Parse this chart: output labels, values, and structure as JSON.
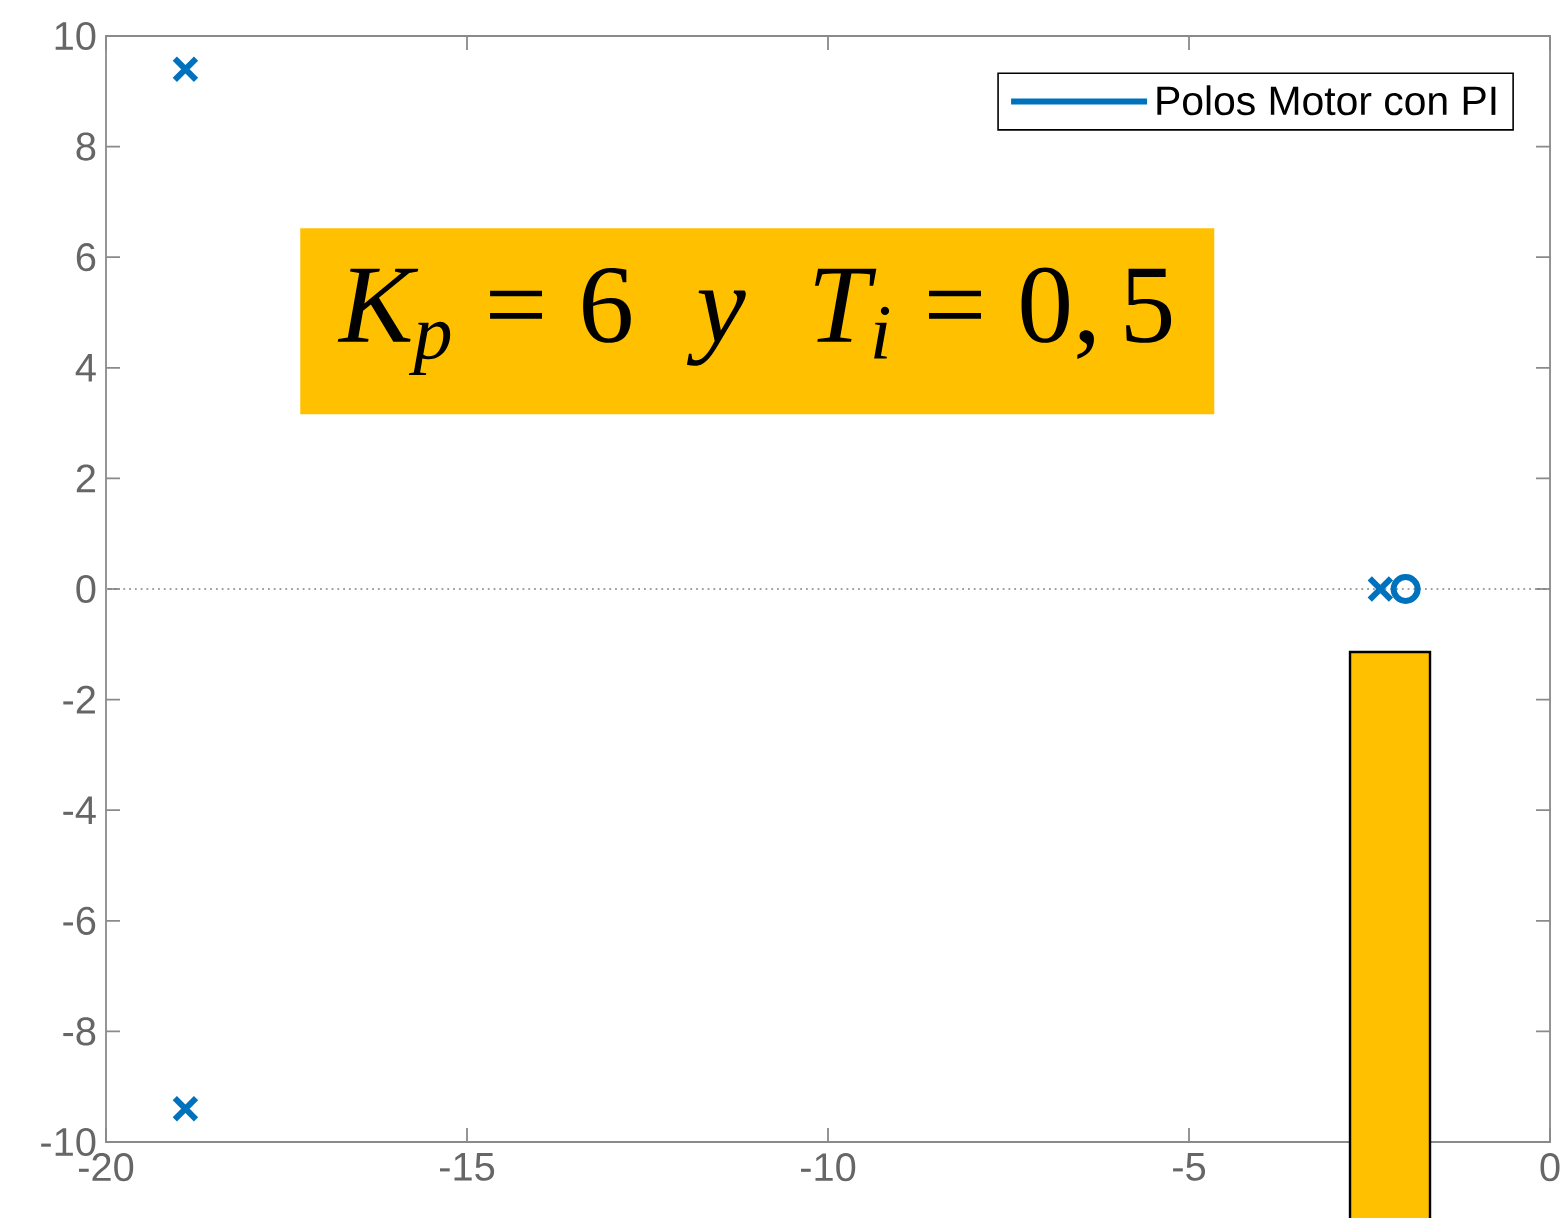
{
  "chart_data": {
    "type": "scatter",
    "xlim": [
      -20,
      0
    ],
    "ylim": [
      -10,
      10
    ],
    "xticks": [
      -20,
      -15,
      -10,
      -5,
      0
    ],
    "yticks": [
      -10,
      -8,
      -6,
      -4,
      -2,
      0,
      2,
      4,
      6,
      8,
      10
    ],
    "legend": "top right",
    "series": [
      {
        "name": "Polos Motor con PI",
        "color": "#0072bd",
        "marker": "cross",
        "x": [
          -18.9,
          -18.9,
          -2.35
        ],
        "values": [
          9.4,
          -9.4,
          0
        ]
      },
      {
        "color": "#0072bd",
        "marker": "circle",
        "x": [
          -2
        ],
        "values": [
          0
        ]
      }
    ],
    "ref_lines": [
      {
        "axis": "y",
        "value": 0,
        "color": "#a0a0a0",
        "line_style": "dotted"
      }
    ],
    "annotations": [
      "K_p = 6 \\;\\; y \\;\\; T_i = 0,5"
    ]
  }
}
